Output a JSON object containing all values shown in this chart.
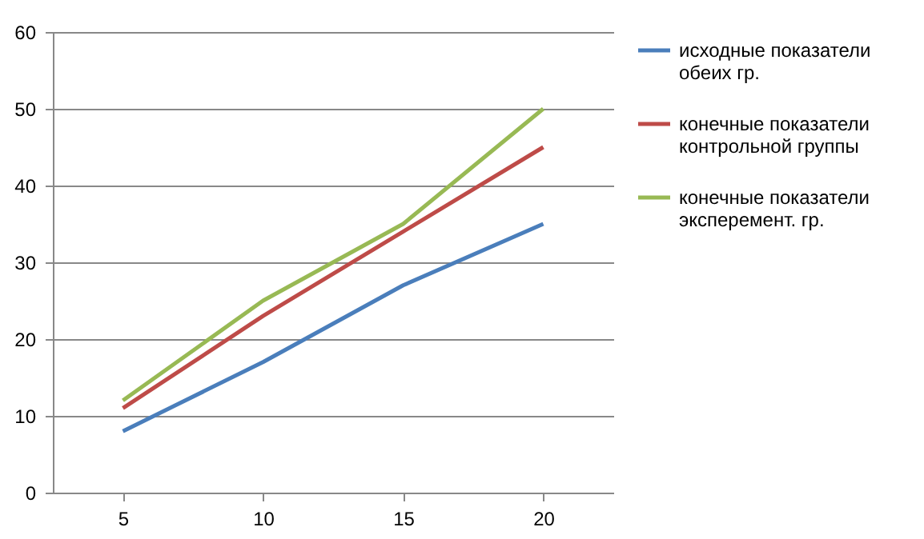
{
  "chart_data": {
    "type": "line",
    "categories": [
      "5",
      "10",
      "15",
      "20"
    ],
    "series": [
      {
        "name": "исходные показатели обеих гр.",
        "color": "#4a7ebb",
        "values": [
          8,
          17,
          27,
          35
        ]
      },
      {
        "name": "конечные показатели контрольной группы",
        "color": "#be4b48",
        "values": [
          11,
          23,
          34,
          45
        ]
      },
      {
        "name": "конечные показатели эксперемент. гр.",
        "color": "#98b954",
        "values": [
          12,
          25,
          35,
          50
        ]
      }
    ],
    "ylim": [
      0,
      60
    ],
    "yticks": [
      0,
      10,
      20,
      30,
      40,
      50,
      60
    ],
    "grid": "y",
    "legend": "right",
    "marker": "none",
    "line_style": "solid"
  }
}
